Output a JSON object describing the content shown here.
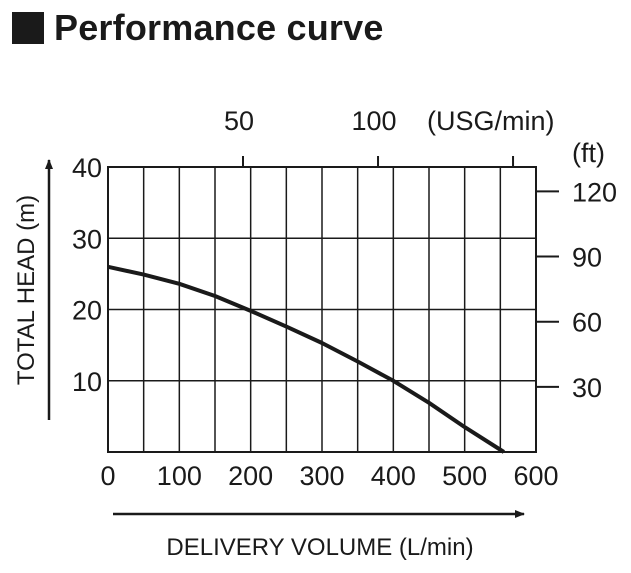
{
  "title": "Performance curve",
  "colors": {
    "ink": "#1a1a1a",
    "grid": "#1a1a1a",
    "curve": "#1a1a1a",
    "background": "#ffffff"
  },
  "chart_data": {
    "type": "line",
    "title": "Performance curve",
    "xlabel": "DELIVERY VOLUME (L/min)",
    "ylabel": "TOTAL HEAD (m)",
    "xlim": [
      0,
      600
    ],
    "ylim": [
      0,
      40
    ],
    "x_ticks": [
      "0",
      "100",
      "200",
      "300",
      "400",
      "500",
      "600"
    ],
    "y_ticks": [
      "10",
      "20",
      "30",
      "40"
    ],
    "secondary_x": {
      "unit": "(USG/min)",
      "ticks": [
        "50",
        "100"
      ]
    },
    "secondary_y": {
      "unit": "(ft)",
      "ticks": [
        "30",
        "60",
        "90",
        "120"
      ]
    },
    "grid": true,
    "series": [
      {
        "x": [
          0,
          50,
          100,
          150,
          200,
          250,
          300,
          350,
          400,
          450,
          500,
          555
        ],
        "y": [
          26,
          24.9,
          23.6,
          21.9,
          19.8,
          17.6,
          15.3,
          12.7,
          10,
          6.9,
          3.5,
          0
        ]
      }
    ]
  }
}
